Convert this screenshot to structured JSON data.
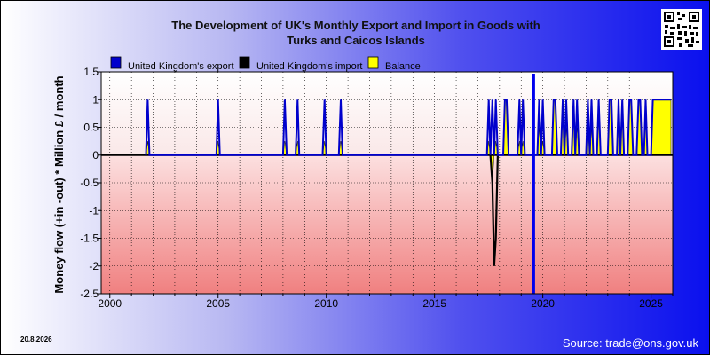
{
  "chart_data": {
    "type": "bar",
    "title": "The Development of UK's Monthly Export and Import in Goods with Turks and Caicos Islands",
    "title_lines": [
      "The Development of UK's Monthly Export and Import in Goods with",
      "Turks and Caicos Islands"
    ],
    "ylabel": "Money flow (+in -out) * Million £ / month",
    "xlim": [
      1999.6,
      2026.0
    ],
    "ylim": [
      -2.5,
      1.5
    ],
    "x_ticks": [
      2000,
      2005,
      2010,
      2015,
      2020,
      2025
    ],
    "x_tick_labels": [
      "2000",
      "2005",
      "2010",
      "2015",
      "2020",
      "2025"
    ],
    "y_ticks": [
      1.5,
      1,
      0.5,
      0,
      -0.5,
      -1,
      -1.5,
      -2,
      -2.5
    ],
    "y_tick_labels": [
      "1.5",
      "1",
      "0.5",
      "0",
      "-0.5",
      "-1",
      "-1.5",
      "-2",
      "-2.5"
    ],
    "grid": true,
    "legend_position": "top",
    "vertical_marker_x": 2019.58,
    "series": [
      {
        "name": "United Kingdom's export",
        "color": "#0000cc",
        "points": [
          [
            2001.67,
            0
          ],
          [
            2001.75,
            1
          ],
          [
            2001.83,
            0
          ],
          [
            2004.92,
            0
          ],
          [
            2005.0,
            1
          ],
          [
            2005.08,
            0
          ],
          [
            2008.0,
            0
          ],
          [
            2008.08,
            1
          ],
          [
            2008.17,
            0
          ],
          [
            2008.58,
            0
          ],
          [
            2008.67,
            1
          ],
          [
            2008.75,
            0
          ],
          [
            2009.83,
            0
          ],
          [
            2009.92,
            1
          ],
          [
            2010.0,
            0
          ],
          [
            2010.58,
            0
          ],
          [
            2010.67,
            1
          ],
          [
            2010.75,
            0
          ],
          [
            2017.42,
            0
          ],
          [
            2017.5,
            1
          ],
          [
            2017.58,
            0
          ],
          [
            2017.67,
            1
          ],
          [
            2017.75,
            0
          ],
          [
            2017.83,
            1
          ],
          [
            2017.92,
            0
          ],
          [
            2018.17,
            0
          ],
          [
            2018.25,
            1
          ],
          [
            2018.33,
            1
          ],
          [
            2018.42,
            0
          ],
          [
            2018.83,
            0
          ],
          [
            2018.92,
            1
          ],
          [
            2019.0,
            0
          ],
          [
            2019.08,
            1
          ],
          [
            2019.17,
            0
          ],
          [
            2019.75,
            0
          ],
          [
            2019.83,
            1
          ],
          [
            2019.92,
            0
          ],
          [
            2020.0,
            1
          ],
          [
            2020.08,
            0
          ],
          [
            2020.42,
            0
          ],
          [
            2020.5,
            1
          ],
          [
            2020.58,
            1
          ],
          [
            2020.67,
            0
          ],
          [
            2020.83,
            0
          ],
          [
            2020.92,
            1
          ],
          [
            2021.0,
            0
          ],
          [
            2021.08,
            1
          ],
          [
            2021.17,
            0
          ],
          [
            2021.33,
            0
          ],
          [
            2021.42,
            1
          ],
          [
            2021.5,
            0
          ],
          [
            2021.58,
            1
          ],
          [
            2021.67,
            0
          ],
          [
            2022.0,
            0
          ],
          [
            2022.08,
            1
          ],
          [
            2022.17,
            0
          ],
          [
            2022.25,
            1
          ],
          [
            2022.33,
            0
          ],
          [
            2022.5,
            0
          ],
          [
            2022.58,
            1
          ],
          [
            2022.67,
            0
          ],
          [
            2023.0,
            0
          ],
          [
            2023.08,
            1
          ],
          [
            2023.17,
            1
          ],
          [
            2023.25,
            0
          ],
          [
            2023.42,
            0
          ],
          [
            2023.5,
            1
          ],
          [
            2023.58,
            0
          ],
          [
            2023.67,
            1
          ],
          [
            2023.75,
            0
          ],
          [
            2023.92,
            0
          ],
          [
            2024.0,
            1
          ],
          [
            2024.08,
            1
          ],
          [
            2024.17,
            0
          ],
          [
            2024.33,
            0
          ],
          [
            2024.42,
            1
          ],
          [
            2024.5,
            1
          ],
          [
            2024.58,
            0
          ],
          [
            2024.67,
            0
          ],
          [
            2024.75,
            1
          ],
          [
            2024.83,
            0
          ],
          [
            2025.0,
            0
          ],
          [
            2025.08,
            1
          ],
          [
            2025.92,
            1
          ]
        ]
      },
      {
        "name": "United Kingdom's import",
        "color": "#000000",
        "points": [
          [
            2017.58,
            0
          ],
          [
            2017.67,
            -0.5
          ],
          [
            2017.75,
            -2.0
          ],
          [
            2017.83,
            -1.5
          ],
          [
            2017.92,
            0
          ]
        ]
      },
      {
        "name": "Balance",
        "color": "#ffff00",
        "points": [
          [
            2001.67,
            0
          ],
          [
            2001.75,
            0.25
          ],
          [
            2001.83,
            0
          ],
          [
            2004.92,
            0
          ],
          [
            2005.0,
            0.25
          ],
          [
            2005.08,
            0
          ],
          [
            2008.0,
            0
          ],
          [
            2008.08,
            0.25
          ],
          [
            2008.17,
            0
          ],
          [
            2008.58,
            0
          ],
          [
            2008.67,
            0.25
          ],
          [
            2008.75,
            0
          ],
          [
            2009.83,
            0
          ],
          [
            2009.92,
            0.25
          ],
          [
            2010.0,
            0
          ],
          [
            2010.58,
            0
          ],
          [
            2010.67,
            0.25
          ],
          [
            2010.75,
            0
          ],
          [
            2017.42,
            0
          ],
          [
            2017.5,
            0.25
          ],
          [
            2017.58,
            0
          ],
          [
            2017.67,
            -0.5
          ],
          [
            2017.75,
            0
          ],
          [
            2017.83,
            0.25
          ],
          [
            2017.92,
            0
          ],
          [
            2018.17,
            0
          ],
          [
            2018.25,
            1
          ],
          [
            2018.33,
            1
          ],
          [
            2018.42,
            0
          ],
          [
            2018.83,
            0
          ],
          [
            2018.92,
            0.25
          ],
          [
            2019.0,
            0
          ],
          [
            2019.08,
            0.25
          ],
          [
            2019.17,
            0
          ],
          [
            2019.75,
            0
          ],
          [
            2019.83,
            0.5
          ],
          [
            2019.92,
            0
          ],
          [
            2020.0,
            0.25
          ],
          [
            2020.08,
            0
          ],
          [
            2020.42,
            0
          ],
          [
            2020.5,
            1
          ],
          [
            2020.58,
            1
          ],
          [
            2020.67,
            0
          ],
          [
            2020.83,
            0
          ],
          [
            2020.92,
            1
          ],
          [
            2021.0,
            0
          ],
          [
            2021.08,
            0.5
          ],
          [
            2021.17,
            0
          ],
          [
            2021.33,
            0
          ],
          [
            2021.42,
            1
          ],
          [
            2021.5,
            0
          ],
          [
            2021.58,
            0.5
          ],
          [
            2021.67,
            0
          ],
          [
            2022.0,
            0
          ],
          [
            2022.08,
            0.5
          ],
          [
            2022.17,
            0
          ],
          [
            2022.25,
            0.5
          ],
          [
            2022.33,
            0
          ],
          [
            2022.5,
            0
          ],
          [
            2022.58,
            1
          ],
          [
            2022.67,
            0
          ],
          [
            2023.0,
            0
          ],
          [
            2023.08,
            1
          ],
          [
            2023.17,
            1
          ],
          [
            2023.25,
            0
          ],
          [
            2023.42,
            0
          ],
          [
            2023.5,
            0.5
          ],
          [
            2023.58,
            0
          ],
          [
            2023.67,
            1
          ],
          [
            2023.75,
            0
          ],
          [
            2023.92,
            0
          ],
          [
            2024.0,
            1
          ],
          [
            2024.08,
            1
          ],
          [
            2024.17,
            0
          ],
          [
            2024.33,
            0
          ],
          [
            2024.42,
            1
          ],
          [
            2024.5,
            1
          ],
          [
            2024.58,
            0
          ],
          [
            2024.67,
            0
          ],
          [
            2024.75,
            1
          ],
          [
            2024.83,
            0
          ],
          [
            2025.0,
            0
          ],
          [
            2025.08,
            1
          ],
          [
            2025.92,
            1
          ]
        ]
      }
    ]
  },
  "footer": {
    "date": "20.8.2026",
    "source": "Source: trade@ons.gov.uk"
  }
}
